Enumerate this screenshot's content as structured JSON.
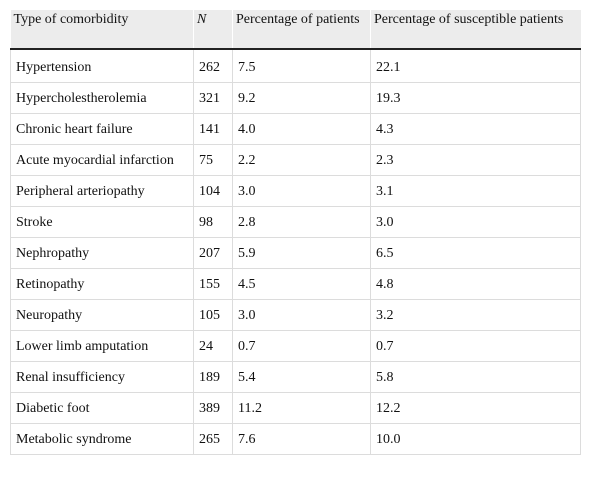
{
  "table": {
    "headers": {
      "type": "Type of comorbidity",
      "n": "N",
      "pct_patients": "Percentage of patients",
      "pct_susceptible": "Percentage of susceptible patients"
    },
    "rows": [
      {
        "type": "Hypertension",
        "n": "262",
        "pct_patients": "7.5",
        "pct_susceptible": "22.1"
      },
      {
        "type": "Hypercholestherolemia",
        "n": "321",
        "pct_patients": "9.2",
        "pct_susceptible": "19.3"
      },
      {
        "type": "Chronic heart failure",
        "n": "141",
        "pct_patients": "4.0",
        "pct_susceptible": "4.3"
      },
      {
        "type": "Acute myocardial infarction",
        "n": "75",
        "pct_patients": "2.2",
        "pct_susceptible": "2.3"
      },
      {
        "type": "Peripheral arteriopathy",
        "n": "104",
        "pct_patients": "3.0",
        "pct_susceptible": "3.1"
      },
      {
        "type": "Stroke",
        "n": "98",
        "pct_patients": "2.8",
        "pct_susceptible": "3.0"
      },
      {
        "type": "Nephropathy",
        "n": "207",
        "pct_patients": "5.9",
        "pct_susceptible": "6.5"
      },
      {
        "type": "Retinopathy",
        "n": "155",
        "pct_patients": "4.5",
        "pct_susceptible": "4.8"
      },
      {
        "type": "Neuropathy",
        "n": "105",
        "pct_patients": "3.0",
        "pct_susceptible": "3.2"
      },
      {
        "type": "Lower limb amputation",
        "n": "24",
        "pct_patients": "0.7",
        "pct_susceptible": "0.7"
      },
      {
        "type": "Renal insufficiency",
        "n": "189",
        "pct_patients": "5.4",
        "pct_susceptible": "5.8"
      },
      {
        "type": "Diabetic foot",
        "n": "389",
        "pct_patients": "11.2",
        "pct_susceptible": "12.2"
      },
      {
        "type": "Metabolic syndrome",
        "n": "265",
        "pct_patients": "7.6",
        "pct_susceptible": "10.0"
      }
    ]
  }
}
